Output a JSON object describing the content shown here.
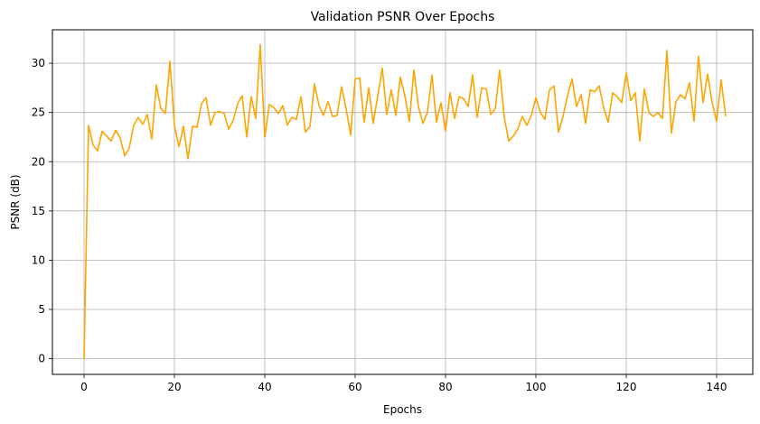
{
  "chart_data": {
    "type": "line",
    "title": "Validation PSNR Over Epochs",
    "xlabel": "Epochs",
    "ylabel": "PSNR (dB)",
    "xlim": [
      -7,
      148
    ],
    "ylim": [
      -1.6,
      33.4
    ],
    "xticks": [
      0,
      20,
      40,
      60,
      80,
      100,
      120,
      140
    ],
    "yticks": [
      0,
      5,
      10,
      15,
      20,
      25,
      30
    ],
    "grid": true,
    "line_color": "#FFA500",
    "grid_color": "#B0B0B0",
    "series": [
      {
        "values": [
          0.0,
          23.7,
          21.7,
          21.1,
          23.1,
          22.6,
          22.1,
          23.2,
          22.4,
          20.6,
          21.4,
          23.7,
          24.5,
          23.8,
          24.8,
          22.3,
          27.8,
          25.4,
          24.9,
          30.2,
          23.7,
          21.5,
          23.6,
          20.3,
          23.6,
          23.5,
          25.9,
          26.5,
          23.7,
          25.0,
          25.1,
          24.9,
          23.3,
          24.2,
          25.9,
          26.7,
          22.5,
          26.6,
          24.4,
          31.9,
          22.5,
          25.8,
          25.5,
          24.9,
          25.7,
          23.7,
          24.5,
          24.3,
          26.6,
          23.0,
          23.6,
          27.9,
          25.7,
          24.7,
          26.1,
          24.6,
          24.7,
          27.6,
          25.4,
          22.7,
          28.4,
          28.5,
          24.0,
          27.5,
          23.9,
          26.7,
          29.5,
          24.8,
          27.3,
          24.7,
          28.6,
          26.7,
          24.1,
          29.3,
          25.6,
          23.9,
          25.0,
          28.8,
          24.0,
          26.0,
          23.1,
          27.0,
          24.4,
          26.6,
          26.4,
          25.6,
          28.8,
          24.5,
          27.5,
          27.4,
          24.8,
          25.4,
          29.3,
          24.5,
          22.1,
          22.6,
          23.3,
          24.6,
          23.7,
          24.7,
          26.5,
          25.0,
          24.3,
          27.3,
          27.7,
          23.0,
          24.6,
          26.7,
          28.4,
          25.6,
          26.8,
          23.9,
          27.3,
          27.1,
          27.7,
          25.5,
          24.0,
          27.0,
          26.6,
          26.0,
          29.0,
          26.2,
          27.0,
          22.1,
          27.4,
          25.0,
          24.6,
          25.0,
          24.4,
          31.3,
          22.9,
          26.1,
          26.8,
          26.4,
          28.0,
          24.1,
          30.7,
          26.0,
          28.9,
          26.0,
          24.1,
          28.3,
          24.6
        ]
      }
    ]
  }
}
